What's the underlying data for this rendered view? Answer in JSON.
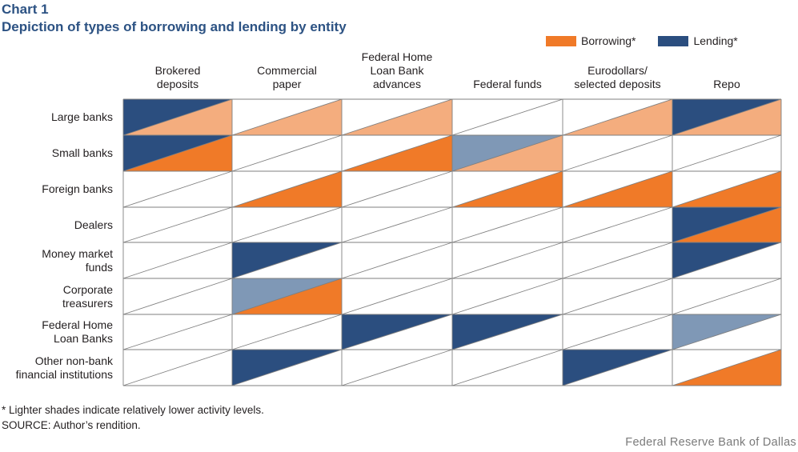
{
  "header": {
    "chart_label": "Chart 1",
    "title": "Depiction of types of borrowing and lending by entity"
  },
  "colors": {
    "borrowing": "#f07a28",
    "borrowing_light": "#f4ad7e",
    "lending": "#2b4e7f",
    "lending_light": "#7f98b6",
    "grid": "#7f7f7f"
  },
  "chart_data": {
    "type": "table",
    "title": "Depiction of types of borrowing and lending by entity",
    "legend": [
      {
        "key": "borrowing",
        "label": "Borrowing*"
      },
      {
        "key": "lending",
        "label": "Lending*"
      }
    ],
    "columns": [
      {
        "lines": [
          "Brokered",
          "deposits"
        ]
      },
      {
        "lines": [
          "Commercial",
          "paper"
        ]
      },
      {
        "lines": [
          "Federal Home",
          "Loan Bank",
          "advances"
        ]
      },
      {
        "lines": [
          "Federal funds"
        ]
      },
      {
        "lines": [
          "Eurodollars/",
          "selected deposits"
        ]
      },
      {
        "lines": [
          "Repo"
        ]
      }
    ],
    "rows": [
      {
        "lines": [
          "Large banks"
        ]
      },
      {
        "lines": [
          "Small banks"
        ]
      },
      {
        "lines": [
          "Foreign banks"
        ]
      },
      {
        "lines": [
          "Dealers"
        ]
      },
      {
        "lines": [
          "Money market",
          "funds"
        ]
      },
      {
        "lines": [
          "Corporate",
          "treasurers"
        ]
      },
      {
        "lines": [
          "Federal Home",
          "Loan Banks"
        ]
      },
      {
        "lines": [
          "Other non-bank",
          "financial institutions"
        ]
      }
    ],
    "cells": [
      [
        {
          "lending": "high",
          "borrowing": "low"
        },
        {
          "lending": "none",
          "borrowing": "low"
        },
        {
          "lending": "none",
          "borrowing": "low"
        },
        {
          "lending": "none",
          "borrowing": "none"
        },
        {
          "lending": "none",
          "borrowing": "low"
        },
        {
          "lending": "high",
          "borrowing": "low"
        }
      ],
      [
        {
          "lending": "high",
          "borrowing": "high"
        },
        {
          "lending": "none",
          "borrowing": "none"
        },
        {
          "lending": "none",
          "borrowing": "high"
        },
        {
          "lending": "low",
          "borrowing": "low"
        },
        {
          "lending": "none",
          "borrowing": "none"
        },
        {
          "lending": "none",
          "borrowing": "none"
        }
      ],
      [
        {
          "lending": "none",
          "borrowing": "none"
        },
        {
          "lending": "none",
          "borrowing": "high"
        },
        {
          "lending": "none",
          "borrowing": "none"
        },
        {
          "lending": "none",
          "borrowing": "high"
        },
        {
          "lending": "none",
          "borrowing": "high"
        },
        {
          "lending": "none",
          "borrowing": "high"
        }
      ],
      [
        {
          "lending": "none",
          "borrowing": "none"
        },
        {
          "lending": "none",
          "borrowing": "none"
        },
        {
          "lending": "none",
          "borrowing": "none"
        },
        {
          "lending": "none",
          "borrowing": "none"
        },
        {
          "lending": "none",
          "borrowing": "none"
        },
        {
          "lending": "high",
          "borrowing": "high"
        }
      ],
      [
        {
          "lending": "none",
          "borrowing": "none"
        },
        {
          "lending": "high",
          "borrowing": "none"
        },
        {
          "lending": "none",
          "borrowing": "none"
        },
        {
          "lending": "none",
          "borrowing": "none"
        },
        {
          "lending": "none",
          "borrowing": "none"
        },
        {
          "lending": "high",
          "borrowing": "none"
        }
      ],
      [
        {
          "lending": "none",
          "borrowing": "none"
        },
        {
          "lending": "low",
          "borrowing": "high"
        },
        {
          "lending": "none",
          "borrowing": "none"
        },
        {
          "lending": "none",
          "borrowing": "none"
        },
        {
          "lending": "none",
          "borrowing": "none"
        },
        {
          "lending": "none",
          "borrowing": "none"
        }
      ],
      [
        {
          "lending": "none",
          "borrowing": "none"
        },
        {
          "lending": "none",
          "borrowing": "none"
        },
        {
          "lending": "high",
          "borrowing": "none"
        },
        {
          "lending": "high",
          "borrowing": "none"
        },
        {
          "lending": "none",
          "borrowing": "none"
        },
        {
          "lending": "low",
          "borrowing": "none"
        }
      ],
      [
        {
          "lending": "none",
          "borrowing": "none"
        },
        {
          "lending": "high",
          "borrowing": "none"
        },
        {
          "lending": "none",
          "borrowing": "none"
        },
        {
          "lending": "none",
          "borrowing": "none"
        },
        {
          "lending": "high",
          "borrowing": "none"
        },
        {
          "lending": "none",
          "borrowing": "high"
        }
      ]
    ]
  },
  "footer": {
    "footnote": "* Lighter shades indicate relatively lower activity levels.",
    "source": "SOURCE: Author’s rendition.",
    "credit": "Federal Reserve Bank of Dallas"
  }
}
